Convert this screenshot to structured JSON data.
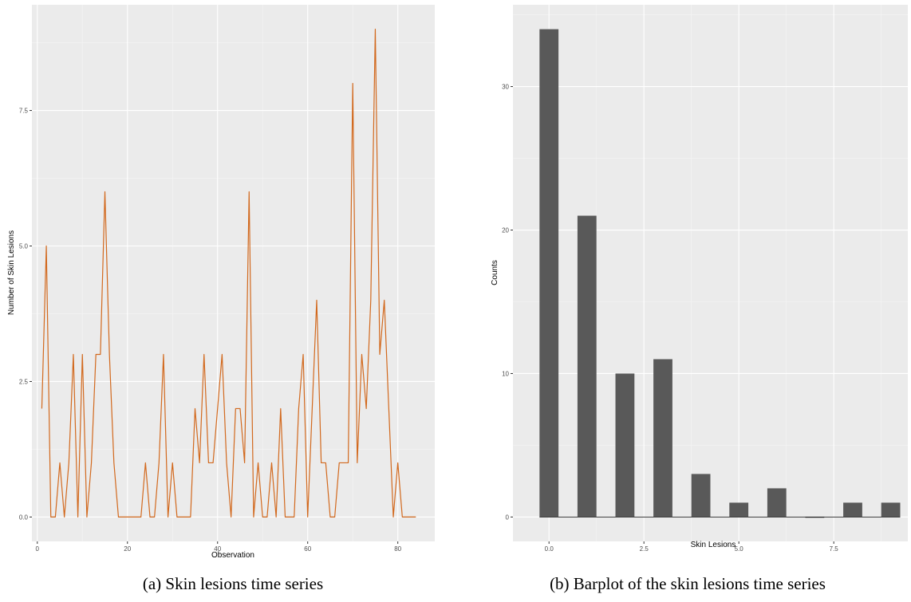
{
  "chart_data": [
    {
      "type": "line",
      "caption": "(a) Skin lesions time series",
      "xlabel": "Observation",
      "ylabel": "Number of Skin Lesions",
      "xlim": [
        -1.2,
        88.2
      ],
      "ylim": [
        -0.45,
        9.45
      ],
      "xticks": [
        0,
        20,
        40,
        60,
        80
      ],
      "xtick_labels": [
        "0",
        "20",
        "40",
        "60",
        "80"
      ],
      "yticks": [
        0,
        2.5,
        5,
        7.5
      ],
      "ytick_labels": [
        "0.0",
        "2.5",
        "5.0",
        "7.5"
      ],
      "line_color": "#d2691e",
      "x": [
        1,
        2,
        3,
        4,
        5,
        6,
        7,
        8,
        9,
        10,
        11,
        12,
        13,
        14,
        15,
        16,
        17,
        18,
        19,
        20,
        21,
        22,
        23,
        24,
        25,
        26,
        27,
        28,
        29,
        30,
        31,
        32,
        33,
        34,
        35,
        36,
        37,
        38,
        39,
        40,
        41,
        42,
        43,
        44,
        45,
        46,
        47,
        48,
        49,
        50,
        51,
        52,
        53,
        54,
        55,
        56,
        57,
        58,
        59,
        60,
        61,
        62,
        63,
        64,
        65,
        66,
        67,
        68,
        69,
        70,
        71,
        72,
        73,
        74,
        75,
        76,
        77,
        78,
        79,
        80,
        81,
        82,
        83,
        84
      ],
      "values": [
        2,
        5,
        0,
        0,
        1,
        0,
        1,
        3,
        0,
        3,
        0,
        1,
        3,
        3,
        6,
        3,
        1,
        0,
        0,
        0,
        0,
        0,
        0,
        1,
        0,
        0,
        1,
        3,
        0,
        1,
        0,
        0,
        0,
        0,
        2,
        1,
        3,
        1,
        1,
        2,
        3,
        1,
        0,
        2,
        2,
        1,
        6,
        0,
        1,
        0,
        0,
        1,
        0,
        2,
        0,
        0,
        0,
        2,
        3,
        0,
        2,
        4,
        1,
        1,
        0,
        0,
        1,
        1,
        1,
        8,
        1,
        3,
        2,
        4,
        9,
        3,
        4,
        2,
        0,
        1,
        0,
        0,
        0,
        0
      ]
    },
    {
      "type": "bar",
      "caption": "(b) Barplot of the skin lesions time series",
      "xlabel": "Skin Lesions",
      "ylabel": "Counts",
      "xlim": [
        -0.95,
        9.45
      ],
      "ylim": [
        -1.7,
        35.7
      ],
      "xticks": [
        0,
        2.5,
        5,
        7.5
      ],
      "xtick_labels": [
        "0.0",
        "2.5",
        "5.0",
        "7.5"
      ],
      "yticks": [
        0,
        10,
        20,
        30
      ],
      "ytick_labels": [
        "0",
        "10",
        "20",
        "30"
      ],
      "bar_color": "#595959",
      "bar_width": 0.5,
      "categories": [
        0,
        1,
        2,
        3,
        4,
        5,
        6,
        7,
        8,
        9
      ],
      "values": [
        34,
        21,
        10,
        11,
        3,
        1,
        2,
        0,
        1,
        1
      ]
    }
  ]
}
